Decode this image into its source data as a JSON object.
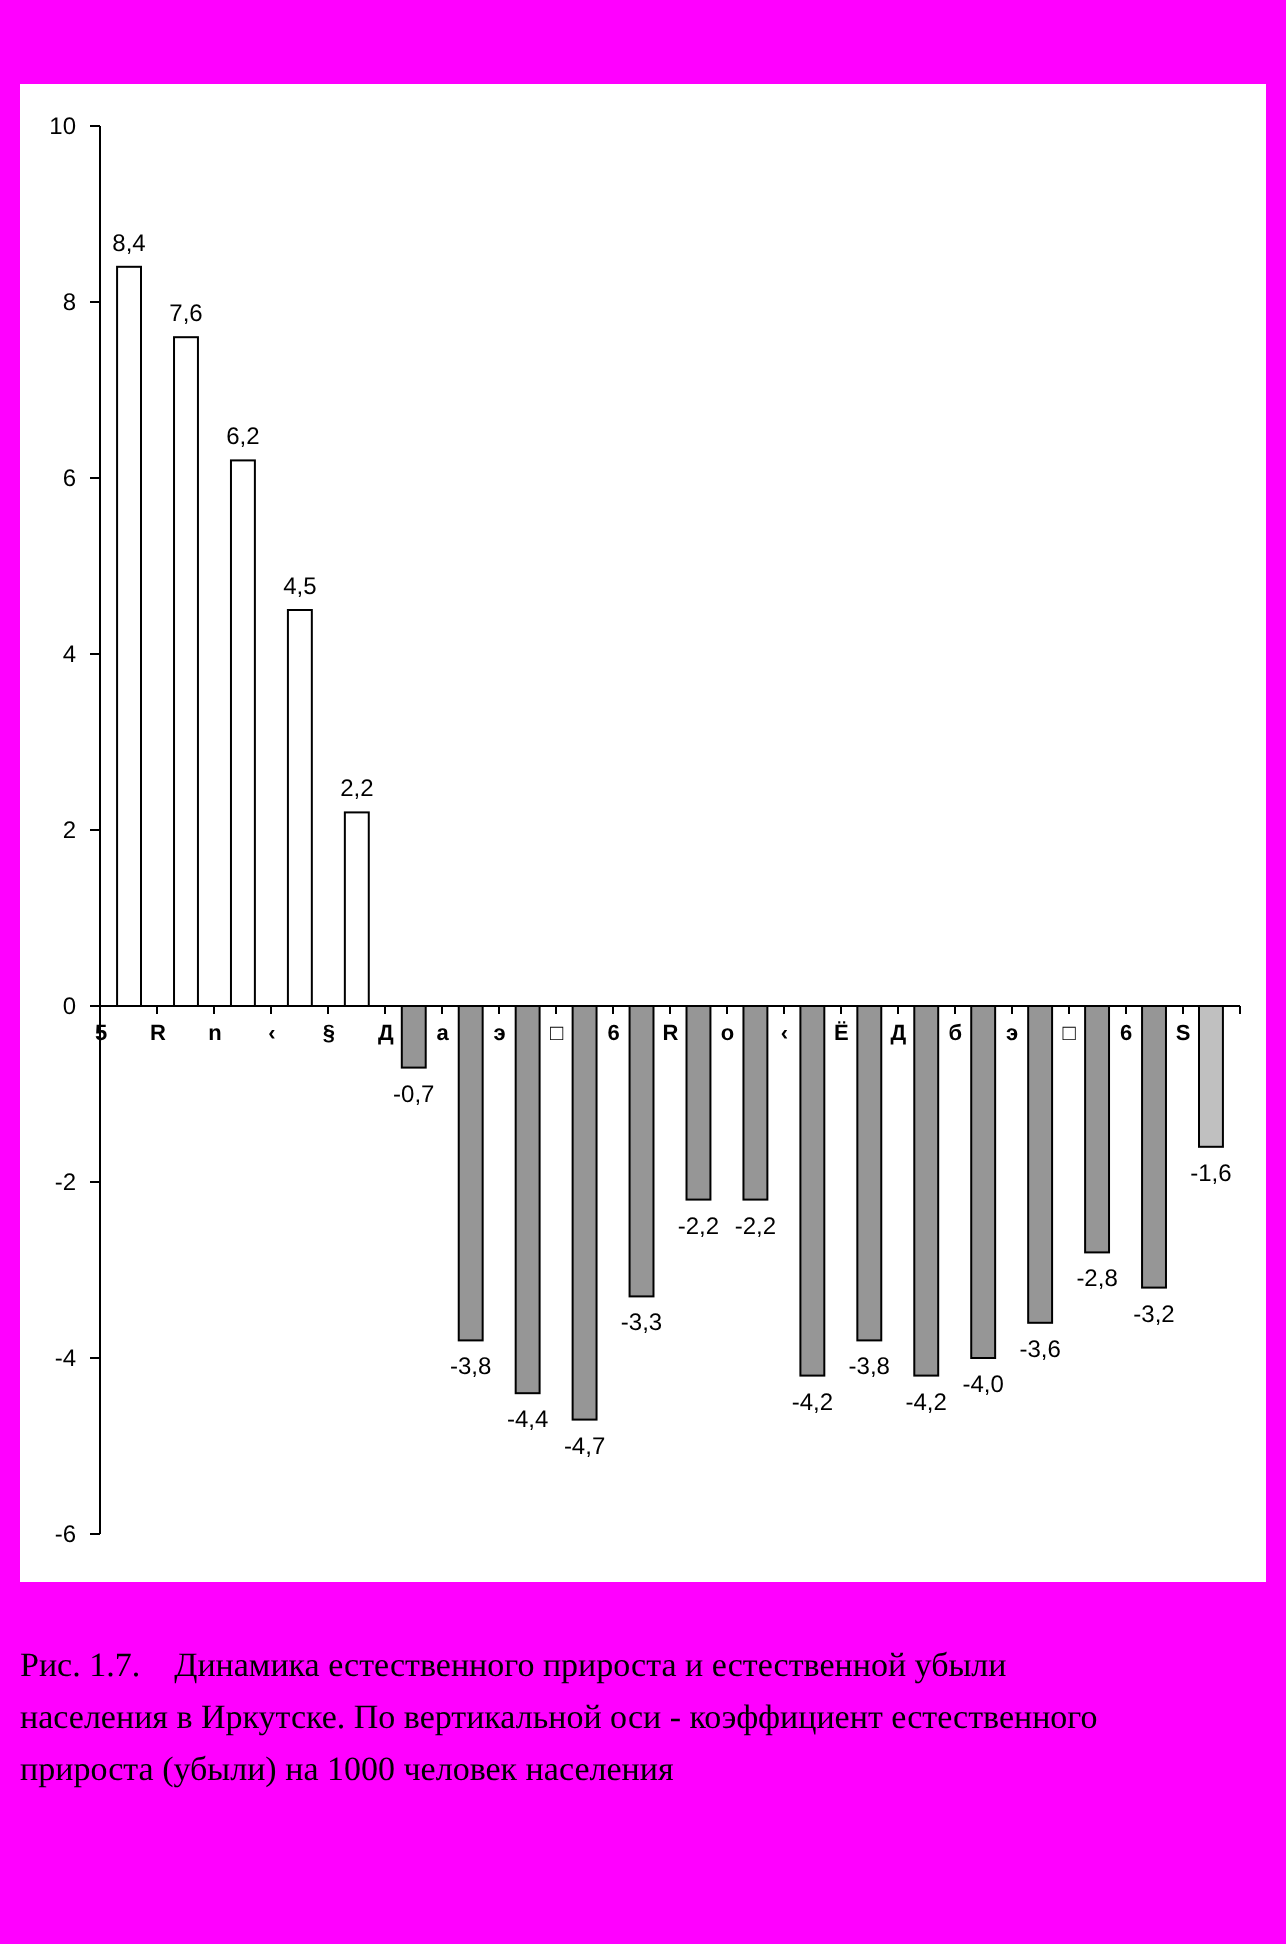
{
  "chart_data": {
    "type": "bar",
    "categories": [
      "5",
      "R",
      "n",
      "‹",
      "§",
      "Д",
      "а",
      "э",
      "□",
      "6",
      "R",
      "о",
      "‹",
      "Ё",
      "Д",
      "б",
      "э",
      "□",
      "6",
      "S"
    ],
    "values": [
      8.4,
      7.6,
      6.2,
      4.5,
      2.2,
      -0.7,
      -3.8,
      -4.4,
      -4.7,
      -3.3,
      -2.2,
      -2.2,
      -4.2,
      -3.8,
      -4.2,
      -4.0,
      -3.6,
      -2.8,
      -3.2,
      -1.6
    ],
    "value_labels": [
      "8,4",
      "7,6",
      "6,2",
      "4,5",
      "2,2",
      "-0,7",
      "-3,8",
      "-4,4",
      "-4,7",
      "-3,3",
      "-2,2",
      "-2,2",
      "-4,2",
      "-3,8",
      "-4,2",
      "-4,0",
      "-3,6",
      "-2,8",
      "-3,2",
      "-1,6"
    ],
    "colors": [
      "#ffffff",
      "#ffffff",
      "#ffffff",
      "#ffffff",
      "#ffffff",
      "#969696",
      "#969696",
      "#969696",
      "#969696",
      "#969696",
      "#969696",
      "#969696",
      "#969696",
      "#969696",
      "#969696",
      "#969696",
      "#969696",
      "#969696",
      "#969696",
      "#c0c0c0"
    ],
    "ylim": [
      -6,
      10
    ],
    "yticks": [
      -6,
      -4,
      -2,
      0,
      2,
      4,
      6,
      8,
      10
    ],
    "grid": false,
    "annotations": [
      "Рис. 1.7.    Динамика естественного прироста и естественной убыли населения в Иркутске. По вертикальной оси - коэффициент естественного прироста (убыли) на 1000 человек населения"
    ]
  }
}
